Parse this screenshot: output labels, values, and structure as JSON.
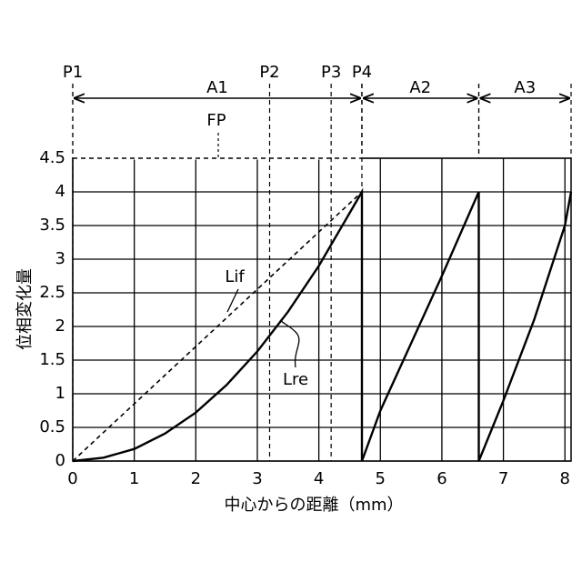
{
  "chart_data": {
    "type": "line",
    "x_label": "中心からの距離（mm）",
    "y_label": "位相変化量",
    "xlim": [
      0,
      8.1
    ],
    "ylim": [
      0,
      4.5
    ],
    "xticks": [
      0,
      1,
      2,
      3,
      4,
      5,
      6,
      7,
      8
    ],
    "yticks": [
      0,
      0.5,
      1,
      1.5,
      2,
      2.5,
      3,
      3.5,
      4,
      4.5
    ],
    "grid": true,
    "series": [
      {
        "name": "Lre",
        "color": "#000000",
        "dash": false,
        "x": [
          0,
          0.5,
          1,
          1.5,
          2,
          2.5,
          3,
          3.5,
          4,
          4.7,
          4.7,
          5,
          5.5,
          6,
          6.6,
          6.6,
          7,
          7.5,
          8,
          8.1
        ],
        "values": [
          0,
          0.05,
          0.18,
          0.41,
          0.72,
          1.13,
          1.63,
          2.22,
          2.9,
          4,
          0,
          0.75,
          1.75,
          2.75,
          4,
          0,
          0.9,
          2.1,
          3.5,
          4
        ]
      },
      {
        "name": "Lif",
        "color": "#000000",
        "dash": true,
        "x": [
          0,
          4.7
        ],
        "values": [
          0,
          4
        ]
      }
    ],
    "fp_line": {
      "label": "FP",
      "y": 4.5,
      "x": [
        0,
        4.7
      ]
    },
    "markers": [
      {
        "label": "P1",
        "x": 0
      },
      {
        "label": "P2",
        "x": 3.2
      },
      {
        "label": "P3",
        "x": 4.2
      },
      {
        "label": "P4",
        "x": 4.7
      }
    ],
    "regions": [
      {
        "label": "A1",
        "from": 0,
        "to": 4.7
      },
      {
        "label": "A2",
        "from": 4.7,
        "to": 6.6
      },
      {
        "label": "A3",
        "from": 6.6,
        "to": 8.1
      }
    ]
  }
}
